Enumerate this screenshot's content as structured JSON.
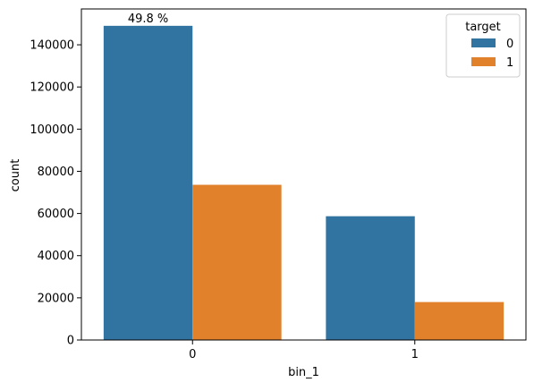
{
  "chart_data": {
    "type": "bar",
    "xlabel": "bin_1",
    "ylabel": "count",
    "categories": [
      "0",
      "1"
    ],
    "ylim": [
      0,
      157000
    ],
    "yticks": [
      0,
      20000,
      40000,
      60000,
      80000,
      100000,
      120000,
      140000
    ],
    "series": [
      {
        "name": "0",
        "color": "#3274a1",
        "values": [
          149000,
          58700
        ]
      },
      {
        "name": "1",
        "color": "#e1812c",
        "values": [
          73600,
          18000
        ]
      }
    ],
    "legend": {
      "title": "target",
      "placement": "top-right"
    },
    "annotations": [
      {
        "text": "49.8 %",
        "category": "0",
        "series": "0"
      }
    ],
    "grid": false
  }
}
